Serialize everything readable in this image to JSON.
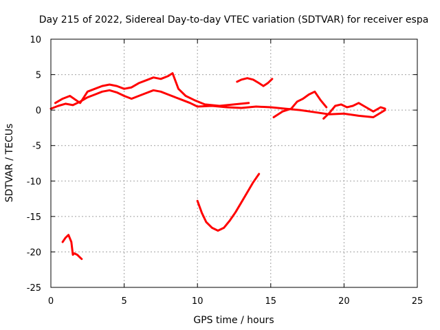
{
  "chart_data": {
    "type": "line",
    "title": "Day 215 of 2022, Sidereal Day-to-day VTEC variation (SDTVAR) for receiver espa",
    "xlabel": "GPS time / hours",
    "ylabel": "SDTVAR / TECUs",
    "xlim": [
      0,
      25
    ],
    "ylim": [
      -25,
      10
    ],
    "xticks": [
      0,
      5,
      10,
      15,
      20,
      25
    ],
    "yticks": [
      -25,
      -20,
      -15,
      -10,
      -5,
      0,
      5,
      10
    ],
    "grid": true,
    "color": "#ff0000",
    "series": [
      {
        "name": "main-band-lower",
        "x": [
          0,
          0.5,
          1,
          1.5,
          2,
          2.5,
          3,
          3.5,
          4,
          4.5,
          5,
          5.5,
          6,
          6.5,
          7,
          7.5,
          8,
          8.5,
          9,
          9.5,
          10,
          11,
          12,
          13,
          14,
          15,
          16,
          17,
          18,
          19,
          20,
          21,
          22,
          22.8
        ],
        "y": [
          0.2,
          0.6,
          0.9,
          0.7,
          1.2,
          1.8,
          2.2,
          2.6,
          2.8,
          2.5,
          2.0,
          1.6,
          2.0,
          2.4,
          2.8,
          2.6,
          2.2,
          1.8,
          1.4,
          1.0,
          0.5,
          0.6,
          0.4,
          0.3,
          0.5,
          0.4,
          0.2,
          0.0,
          -0.3,
          -0.6,
          -0.5,
          -0.8,
          -1.0,
          0.0
        ]
      },
      {
        "name": "main-band-upper",
        "x": [
          0.3,
          0.8,
          1.3,
          2,
          2.5,
          3,
          3.5,
          4,
          4.5,
          5,
          5.5,
          6,
          6.5,
          7,
          7.5,
          8,
          8.3,
          8.7,
          9.2,
          9.8,
          10.5,
          11.5,
          12.5,
          13.5
        ],
        "y": [
          1.0,
          1.6,
          2.0,
          1.0,
          2.6,
          3.0,
          3.4,
          3.6,
          3.4,
          3.0,
          3.2,
          3.8,
          4.2,
          4.6,
          4.4,
          4.8,
          5.2,
          3.0,
          2.0,
          1.4,
          0.8,
          0.6,
          0.8,
          1.0
        ]
      },
      {
        "name": "arc-14h",
        "x": [
          12.7,
          13,
          13.4,
          13.8,
          14.2,
          14.5,
          14.8,
          15.1
        ],
        "y": [
          4.0,
          4.3,
          4.5,
          4.3,
          3.8,
          3.4,
          3.8,
          4.4
        ]
      },
      {
        "name": "segment-16-18h",
        "x": [
          15.2,
          15.8,
          16.4,
          16.8,
          17.2,
          17.6,
          18.0,
          18.4,
          18.8
        ],
        "y": [
          -1.0,
          -0.2,
          0.2,
          1.2,
          1.6,
          2.2,
          2.6,
          1.4,
          0.4
        ]
      },
      {
        "name": "segment-19-23h",
        "x": [
          18.6,
          19.0,
          19.4,
          19.8,
          20.2,
          20.6,
          21.0,
          21.5,
          22.0,
          22.5,
          22.8
        ],
        "y": [
          -1.2,
          -0.4,
          0.6,
          0.8,
          0.4,
          0.6,
          1.0,
          0.4,
          -0.2,
          0.4,
          0.2
        ]
      },
      {
        "name": "curve-10-14h",
        "x": [
          10,
          10.3,
          10.6,
          11,
          11.4,
          11.8,
          12.2,
          12.6,
          13,
          13.4,
          13.8,
          14.2
        ],
        "y": [
          -12.8,
          -14.5,
          -15.8,
          -16.6,
          -17.0,
          -16.6,
          -15.6,
          -14.4,
          -13.0,
          -11.6,
          -10.2,
          -9.0
        ]
      },
      {
        "name": "segment-1-2h",
        "x": [
          0.8,
          1.0,
          1.2,
          1.4,
          1.5,
          1.6,
          1.8,
          2.0,
          2.1
        ],
        "y": [
          -18.6,
          -18.0,
          -17.6,
          -18.6,
          -20.4,
          -20.2,
          -20.4,
          -20.8,
          -21.0
        ]
      }
    ]
  }
}
